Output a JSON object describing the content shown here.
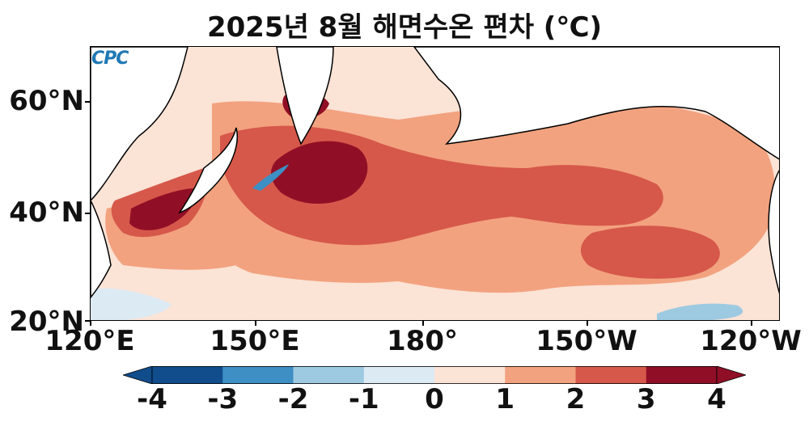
{
  "title": "2025년 8월 해면수온 편차 (℃)",
  "logo_text": "CPC",
  "y_axis": {
    "ticks": [
      "60°N",
      "40°N",
      "20°N"
    ]
  },
  "x_axis": {
    "ticks": [
      "120°E",
      "150°E",
      "180°",
      "150°W",
      "120°W"
    ]
  },
  "colorbar": {
    "ticks": [
      "-4",
      "-3",
      "-2",
      "-1",
      "0",
      "1",
      "2",
      "3",
      "4"
    ],
    "colors": [
      "#114c8c",
      "#3d8fc4",
      "#9ecae1",
      "#dceaf4",
      "#fbe3d6",
      "#f2a27f",
      "#d6584a",
      "#910f26"
    ],
    "extend": "both"
  },
  "map": {
    "type": "filled-contour",
    "region": "North Pacific",
    "lon_range": [
      "120°E",
      "120°W"
    ],
    "lat_range": [
      "20°N",
      "70°N"
    ],
    "variable": "sea surface temperature anomaly",
    "unit": "℃",
    "colors": {
      "land": "#ffffff",
      "coastline": "#000000",
      "ocean_base": "#fbe3d6"
    }
  }
}
